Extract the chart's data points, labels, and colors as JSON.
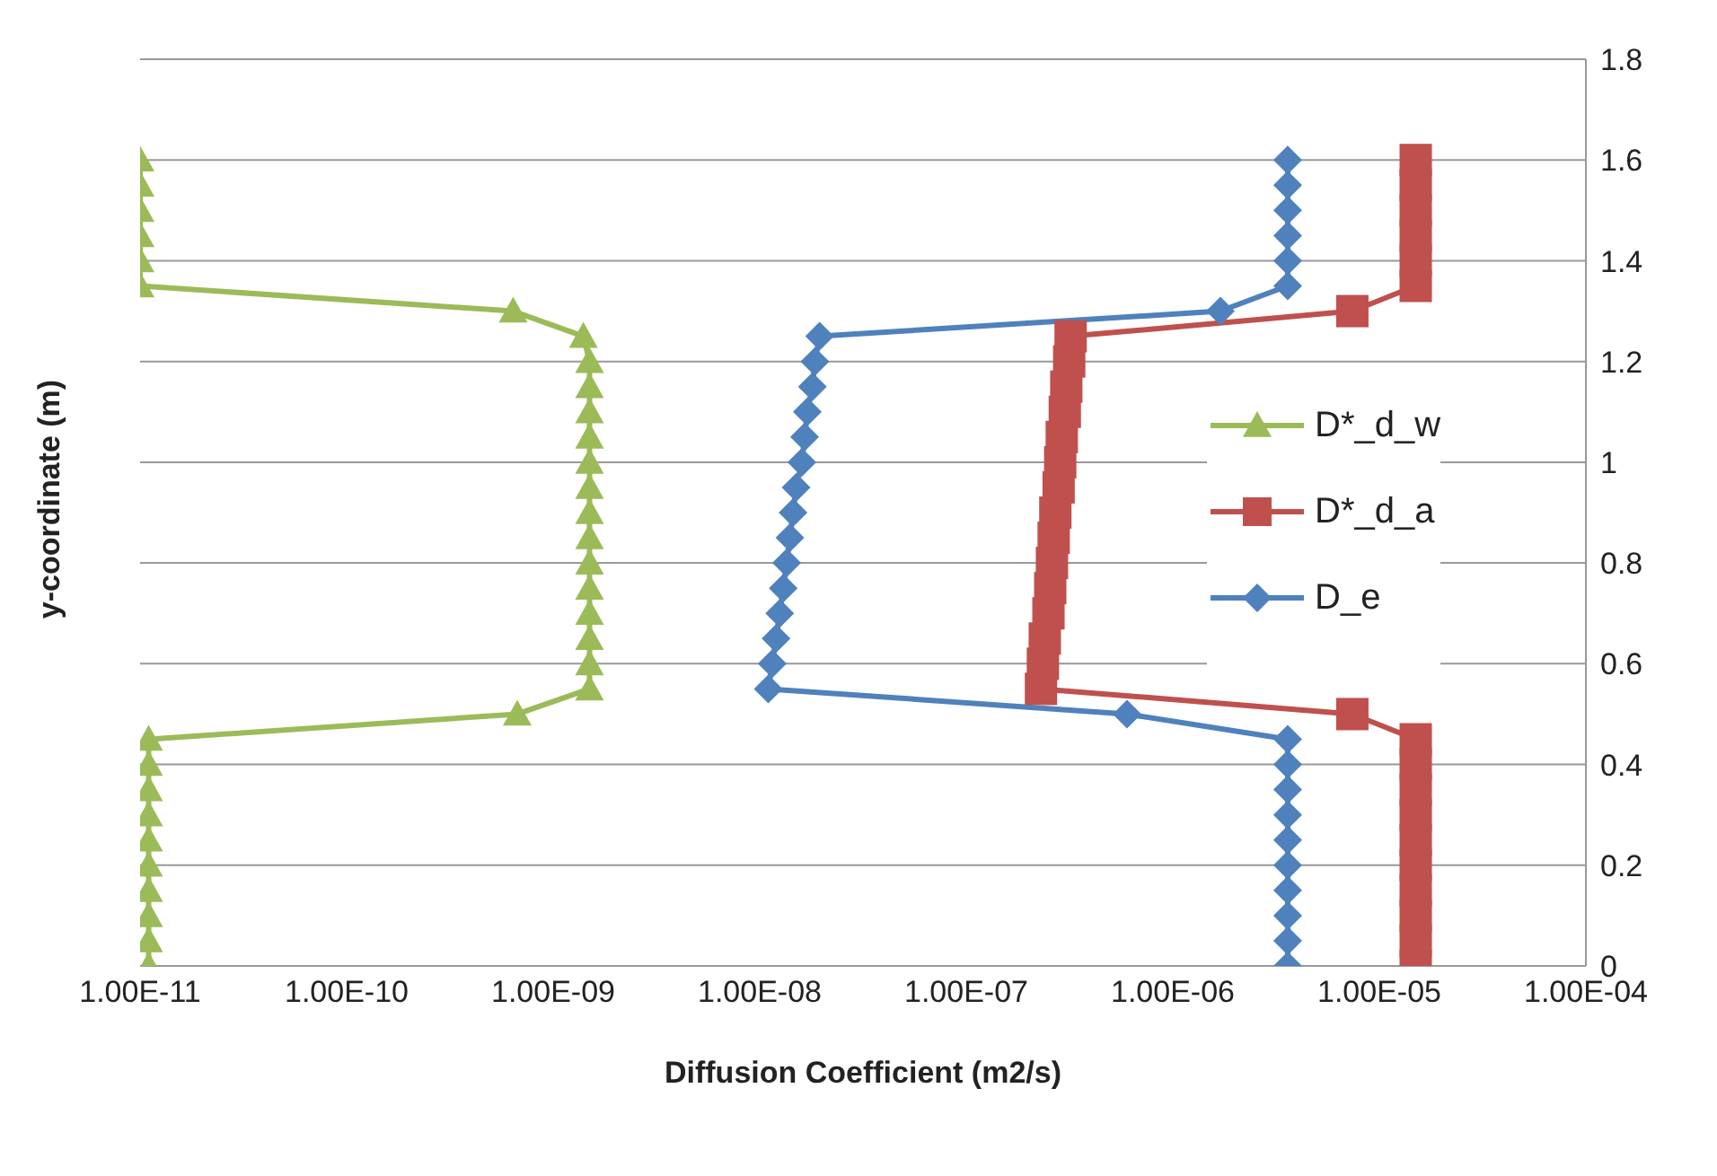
{
  "chart_data": {
    "type": "line",
    "xlabel": "Diffusion Coefficient (m2/s)",
    "ylabel": "y-coordinate (m)",
    "log": "x",
    "grid": "y",
    "legend": "right",
    "xlim": [
      1e-11,
      0.0001
    ],
    "xticks": [
      {
        "value": 1e-11,
        "label": "1.00E-11"
      },
      {
        "value": 1e-10,
        "label": "1.00E-10"
      },
      {
        "value": 1e-09,
        "label": "1.00E-09"
      },
      {
        "value": 1e-08,
        "label": "1.00E-08"
      },
      {
        "value": 1e-07,
        "label": "1.00E-07"
      },
      {
        "value": 1e-06,
        "label": "1.00E-06"
      },
      {
        "value": 1e-05,
        "label": "1.00E-05"
      },
      {
        "value": 0.0001,
        "label": "1.00E-04"
      }
    ],
    "ylim": [
      0,
      1.8
    ],
    "yticks": [
      0,
      0.2,
      0.4,
      0.6,
      0.8,
      1,
      1.2,
      1.4,
      1.6,
      1.8
    ],
    "series": [
      {
        "name": "D*_d_w",
        "color": "#9bbb59",
        "marker": "triangle",
        "x": [
          1.1e-11,
          1.1e-11,
          1.1e-11,
          1.1e-11,
          1.1e-11,
          1.1e-11,
          1.1e-11,
          1.1e-11,
          1.1e-11,
          1.1e-11,
          6.7e-10,
          1.5e-09,
          1.5e-09,
          1.5e-09,
          1.5e-09,
          1.5e-09,
          1.5e-09,
          1.5e-09,
          1.5e-09,
          1.5e-09,
          1.5e-09,
          1.5e-09,
          1.5e-09,
          1.5e-09,
          1.5e-09,
          1.4e-09,
          6.4e-10,
          1e-11,
          1e-11,
          1e-11,
          1e-11,
          1e-11,
          1e-11
        ],
        "values": [
          0,
          0.05,
          0.1,
          0.15,
          0.2,
          0.25,
          0.3,
          0.35,
          0.4,
          0.45,
          0.5,
          0.55,
          0.6,
          0.65,
          0.7,
          0.75,
          0.8,
          0.85,
          0.9,
          0.95,
          1,
          1.05,
          1.1,
          1.15,
          1.2,
          1.25,
          1.3,
          1.35,
          1.4,
          1.45,
          1.5,
          1.55,
          1.6
        ]
      },
      {
        "name": "D*_d_a",
        "color": "#c0504d",
        "marker": "square",
        "x": [
          1.5e-05,
          1.5e-05,
          1.5e-05,
          1.5e-05,
          1.5e-05,
          1.5e-05,
          1.5e-05,
          1.5e-05,
          1.5e-05,
          1.5e-05,
          7.4e-06,
          2.3e-07,
          2.35e-07,
          2.4e-07,
          2.5e-07,
          2.55e-07,
          2.6e-07,
          2.65e-07,
          2.7e-07,
          2.8e-07,
          2.85e-07,
          2.9e-07,
          3e-07,
          3.05e-07,
          3.15e-07,
          3.2e-07,
          7.4e-06,
          1.5e-05,
          1.5e-05,
          1.5e-05,
          1.5e-05,
          1.5e-05,
          1.5e-05
        ],
        "values": [
          0,
          0.05,
          0.1,
          0.15,
          0.2,
          0.25,
          0.3,
          0.35,
          0.4,
          0.45,
          0.5,
          0.55,
          0.6,
          0.65,
          0.7,
          0.75,
          0.8,
          0.85,
          0.9,
          0.95,
          1,
          1.05,
          1.1,
          1.15,
          1.2,
          1.25,
          1.3,
          1.35,
          1.4,
          1.45,
          1.5,
          1.55,
          1.6
        ]
      },
      {
        "name": "D_e",
        "color": "#4f81bd",
        "marker": "diamond",
        "x": [
          3.6e-06,
          3.6e-06,
          3.6e-06,
          3.6e-06,
          3.6e-06,
          3.6e-06,
          3.6e-06,
          3.6e-06,
          3.6e-06,
          3.6e-06,
          6e-07,
          1.1e-08,
          1.15e-08,
          1.2e-08,
          1.25e-08,
          1.3e-08,
          1.35e-08,
          1.4e-08,
          1.45e-08,
          1.5e-08,
          1.6e-08,
          1.65e-08,
          1.7e-08,
          1.8e-08,
          1.85e-08,
          1.95e-08,
          1.7e-06,
          3.6e-06,
          3.6e-06,
          3.6e-06,
          3.6e-06,
          3.6e-06,
          3.6e-06
        ],
        "values": [
          0,
          0.05,
          0.1,
          0.15,
          0.2,
          0.25,
          0.3,
          0.35,
          0.4,
          0.45,
          0.5,
          0.55,
          0.6,
          0.65,
          0.7,
          0.75,
          0.8,
          0.85,
          0.9,
          0.95,
          1,
          1.05,
          1.1,
          1.15,
          1.2,
          1.25,
          1.3,
          1.35,
          1.4,
          1.45,
          1.5,
          1.55,
          1.6
        ]
      }
    ]
  }
}
